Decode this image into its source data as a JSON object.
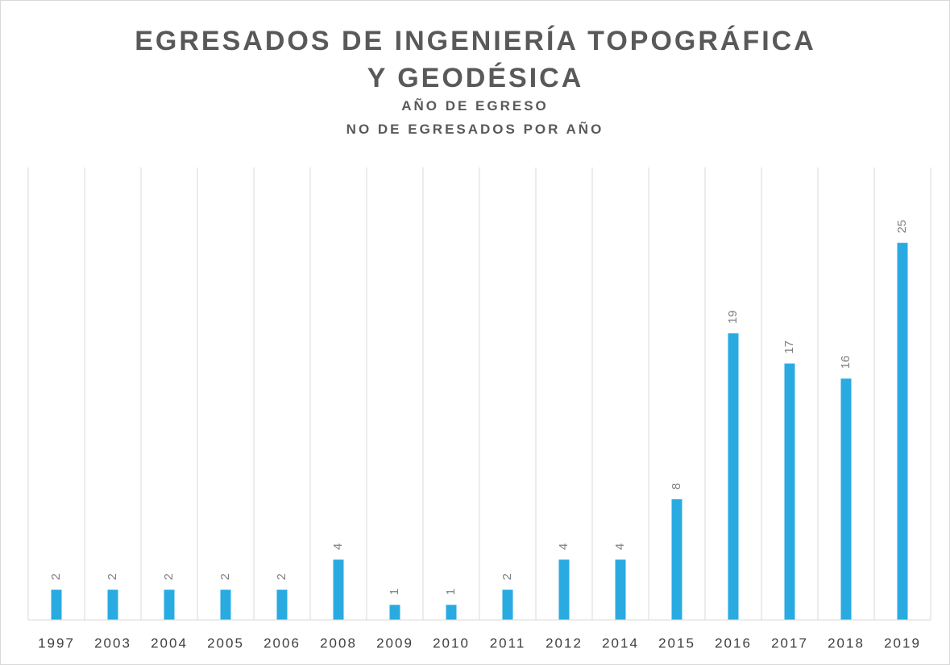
{
  "chart_data": {
    "type": "bar",
    "title": "EGRESADOS DE INGENIERÍA TOPOGRÁFICA Y GEODÉSICA",
    "x_label": "AÑO DE EGRESO",
    "y_label": "NO DE EGRESADOS POR AÑO",
    "categories": [
      "1997",
      "2003",
      "2004",
      "2005",
      "2006",
      "2008",
      "2009",
      "2010",
      "2011",
      "2012",
      "2014",
      "2015",
      "2016",
      "2017",
      "2018",
      "2019"
    ],
    "values": [
      2,
      2,
      2,
      2,
      2,
      4,
      1,
      1,
      2,
      4,
      4,
      8,
      19,
      17,
      16,
      25
    ],
    "color": "#29abe2",
    "ylim": [
      0,
      30
    ]
  }
}
